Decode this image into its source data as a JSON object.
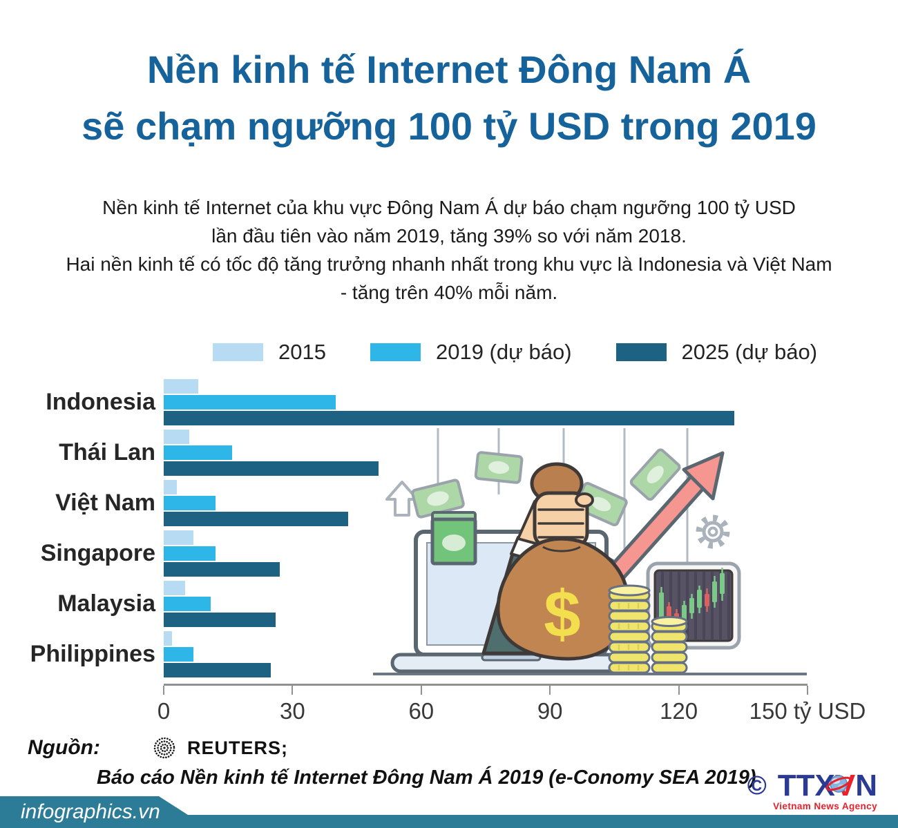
{
  "title": {
    "line1": "Nền kinh tế Internet Đông Nam Á",
    "line2": "sẽ chạm ngưỡng 100 tỷ USD trong 2019"
  },
  "intro": {
    "lines": [
      "Nền kinh tế Internet của khu vực Đông Nam Á dự báo chạm ngưỡng 100 tỷ USD",
      "lần đầu tiên vào năm 2019, tăng 39% so với năm 2018.",
      "Hai nền kinh tế có tốc độ tăng trưởng nhanh nhất trong khu vực là Indonesia và Việt Nam",
      "- tăng trên 40% mỗi năm."
    ]
  },
  "chart_data": {
    "type": "bar",
    "orientation": "horizontal",
    "title": "Nền kinh tế Internet Đông Nam Á sẽ chạm ngưỡng 100 tỷ USD trong 2019",
    "categories": [
      "Indonesia",
      "Thái Lan",
      "Việt Nam",
      "Singapore",
      "Malaysia",
      "Philippines"
    ],
    "series": [
      {
        "name": "2015",
        "color": "#b8dbf4",
        "values": [
          8,
          6,
          3,
          7,
          5,
          2
        ]
      },
      {
        "name": "2019 (dự báo)",
        "color": "#2fb6e9",
        "values": [
          40,
          16,
          12,
          12,
          11,
          7
        ]
      },
      {
        "name": "2025 (dự báo)",
        "color": "#1d6283",
        "values": [
          133,
          50,
          43,
          27,
          26,
          25
        ]
      }
    ],
    "x_axis": {
      "ticks": [
        0,
        30,
        60,
        90,
        120,
        150
      ],
      "unit_label": "tỷ USD",
      "max": 150
    },
    "xlim": [
      0,
      150
    ],
    "legend_position": "top",
    "grid": false
  },
  "illustration": {
    "dollar_sign": "$"
  },
  "source": {
    "label": "Nguồn:",
    "agency": "REUTERS;",
    "report": "Báo cáo Nền kinh tế Internet Đông Nam Á 2019 (e-Conomy SEA 2019)"
  },
  "footer": {
    "site": "infographics.vn",
    "ttxvn": {
      "copyright": "©",
      "part1": "TTX",
      "part2": "V",
      "part3": "N",
      "subtitle": "Vietnam News Agency"
    }
  },
  "colors": {
    "title_blue": "#15639a",
    "bar_2015": "#b8dbf4",
    "bar_2019": "#2fb6e9",
    "bar_2025": "#1d6283",
    "axis_gray": "#919191",
    "footer_teal": "#2d7c97",
    "ttxvn_blue": "#2b3a92",
    "ttxvn_red": "#e8212d"
  }
}
